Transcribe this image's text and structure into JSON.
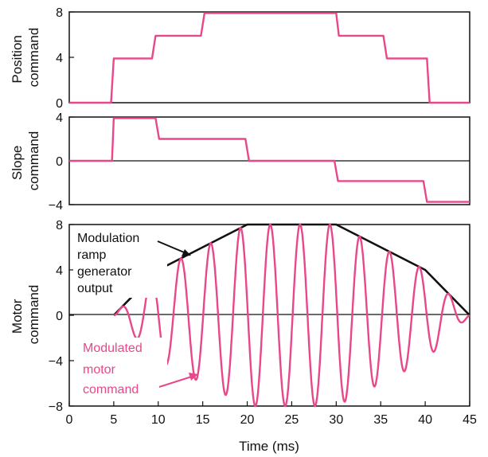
{
  "colors": {
    "pink": "#e8488a",
    "black": "#111111",
    "frame": "#111111"
  },
  "chart_data": [
    {
      "type": "line",
      "ylabel": [
        "Position",
        "command"
      ],
      "xlim": [
        0,
        45
      ],
      "ylim": [
        0,
        8
      ],
      "yticks": [
        "0",
        "4",
        "8"
      ],
      "series": [
        {
          "color": "pink",
          "points": [
            [
              0,
              0
            ],
            [
              4.7,
              0
            ],
            [
              5,
              3.9
            ],
            [
              9.3,
              3.9
            ],
            [
              9.7,
              5.9
            ],
            [
              14.8,
              5.9
            ],
            [
              15.2,
              7.9
            ],
            [
              30,
              7.9
            ],
            [
              30.3,
              5.9
            ],
            [
              35.3,
              5.9
            ],
            [
              35.7,
              3.9
            ],
            [
              40.2,
              3.9
            ],
            [
              40.5,
              0
            ],
            [
              45,
              0
            ]
          ]
        }
      ]
    },
    {
      "type": "line",
      "ylabel": [
        "Slope",
        "command"
      ],
      "xlim": [
        0,
        45
      ],
      "ylim": [
        -4,
        4
      ],
      "yticks": [
        "4",
        "0",
        "−4"
      ],
      "series": [
        {
          "color": "pink",
          "points": [
            [
              0,
              0
            ],
            [
              4.8,
              0
            ],
            [
              5,
              3.9
            ],
            [
              9.7,
              3.9
            ],
            [
              10.1,
              2
            ],
            [
              19.8,
              2
            ],
            [
              20.2,
              0
            ],
            [
              29.8,
              0
            ],
            [
              30.2,
              -1.85
            ],
            [
              39.8,
              -1.85
            ],
            [
              40.2,
              -3.75
            ],
            [
              45,
              -3.75
            ]
          ]
        }
      ]
    },
    {
      "type": "line",
      "ylabel": [
        "Motor",
        "command"
      ],
      "xlabel": "Time (ms)",
      "xlim": [
        0,
        45
      ],
      "ylim": [
        -8,
        8
      ],
      "xticks": [
        "0",
        "5",
        "10",
        "15",
        "20",
        "25",
        "30",
        "35",
        "40",
        "45"
      ],
      "yticks": [
        "8",
        "4",
        "0",
        "−4",
        "−8"
      ],
      "series": [
        {
          "color": "black",
          "points": [
            [
              5,
              0
            ],
            [
              10,
              4
            ],
            [
              15,
              6
            ],
            [
              20,
              8
            ],
            [
              30,
              8
            ],
            [
              35,
              6
            ],
            [
              40,
              4
            ],
            [
              45,
              0
            ]
          ]
        },
        {
          "color": "pink",
          "oscillation": true,
          "envelope_ref": 0,
          "period_ms": 3.35,
          "start_ms": 5,
          "end_ms": 45
        }
      ],
      "annotations": [
        {
          "lines": [
            "Modulation",
            "ramp",
            "generator",
            "output"
          ],
          "color": "black"
        },
        {
          "lines": [
            "Modulated",
            "motor",
            "command"
          ],
          "color": "pink"
        }
      ]
    }
  ]
}
